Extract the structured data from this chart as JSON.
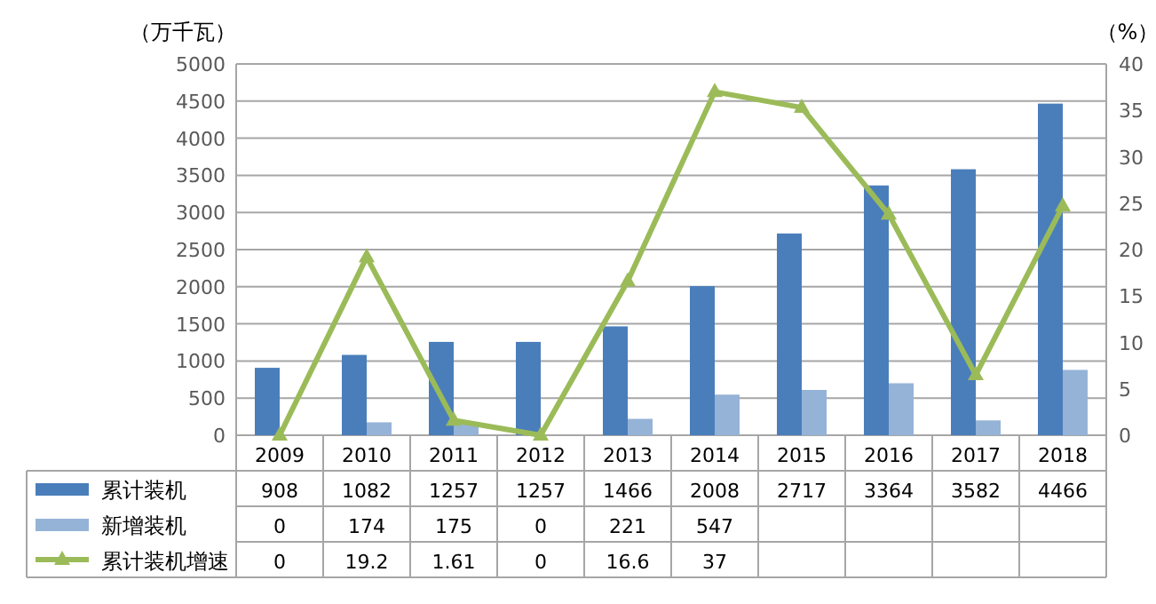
{
  "chart_data": {
    "type": "bar",
    "categories": [
      "2009",
      "2010",
      "2011",
      "2012",
      "2013",
      "2014",
      "2015",
      "2016",
      "2017",
      "2018"
    ],
    "ylabel": "（万千瓦）",
    "y2label": "（%）",
    "ylim": [
      0,
      5000
    ],
    "yticks": [
      0,
      500,
      1000,
      1500,
      2000,
      2500,
      3000,
      3500,
      4000,
      4500,
      5000
    ],
    "y2lim": [
      0,
      40
    ],
    "y2ticks": [
      0,
      5,
      10,
      15,
      20,
      25,
      30,
      35,
      40
    ],
    "grid": "y",
    "legend": "bottom",
    "marker": "triangle",
    "series": [
      {
        "name": "累计装机",
        "color": "#4a7ebb",
        "values": [
          908,
          1082,
          1257,
          1257,
          1466,
          2008,
          2717,
          3364,
          3582,
          4466
        ],
        "value_labels": [
          "908",
          "1082",
          "1257",
          "1257",
          "1466",
          "2008",
          "2717",
          "3364",
          "3582",
          "4466"
        ]
      },
      {
        "name": "新增装机",
        "color": "#95b3d7",
        "values": [
          0,
          174,
          175,
          0,
          221,
          547,
          610,
          700,
          200,
          880
        ],
        "value_labels": [
          "0",
          "174",
          "175",
          "0",
          "221",
          "547",
          null,
          null,
          null,
          null
        ]
      },
      {
        "name": "累计装机增速",
        "type": "line",
        "axis": "y2",
        "color": "#9bbb59",
        "values": [
          0,
          19.2,
          1.61,
          0,
          16.6,
          37,
          35.3,
          23.8,
          6.5,
          24.7
        ],
        "value_labels": [
          "0",
          "19.2",
          "1.61",
          "0",
          "16.6",
          "37",
          null,
          null,
          null,
          null
        ]
      }
    ]
  }
}
